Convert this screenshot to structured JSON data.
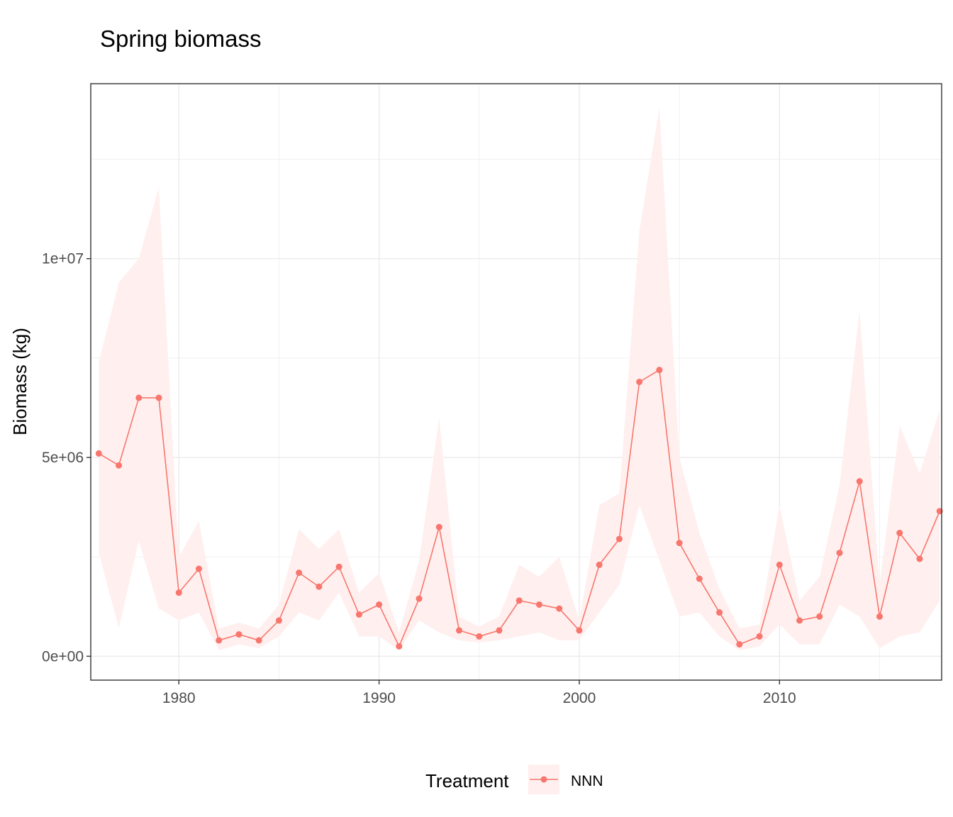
{
  "chart_data": {
    "type": "line",
    "title": "Spring biomass",
    "xlabel": "",
    "ylabel": "Biomass (kg)",
    "xlim": [
      1975.6,
      2018.1
    ],
    "ylim": [
      -600000,
      14400000
    ],
    "x_ticks": [
      1980,
      1990,
      2000,
      2010
    ],
    "x_tick_labels": [
      "1980",
      "1990",
      "2000",
      "2010"
    ],
    "y_ticks": [
      0,
      5000000,
      10000000
    ],
    "y_tick_labels": [
      "0e+00",
      "5e+06",
      "1e+07"
    ],
    "grid": true,
    "legend": {
      "title": "Treatment",
      "position": "bottom",
      "entries": [
        "NNN"
      ]
    },
    "colors": {
      "line": "#f8766d",
      "ribbon": "#fff0ef",
      "grid": "#ebebeb",
      "panel_border": "#333333"
    },
    "series": [
      {
        "name": "NNN",
        "x": [
          1976,
          1977,
          1978,
          1979,
          1980,
          1981,
          1982,
          1983,
          1984,
          1985,
          1986,
          1987,
          1988,
          1989,
          1990,
          1991,
          1992,
          1993,
          1994,
          1995,
          1996,
          1997,
          1998,
          1999,
          2000,
          2001,
          2002,
          2003,
          2004,
          2005,
          2006,
          2007,
          2008,
          2009,
          2010,
          2011,
          2012,
          2013,
          2014,
          2015,
          2016,
          2017,
          2018
        ],
        "y": [
          5100000,
          4800000,
          6500000,
          6500000,
          1600000,
          2200000,
          400000,
          550000,
          400000,
          900000,
          2100000,
          1750000,
          2250000,
          1050000,
          1300000,
          250000,
          1450000,
          3250000,
          650000,
          500000,
          650000,
          1400000,
          1300000,
          1200000,
          650000,
          2300000,
          2950000,
          6900000,
          7200000,
          2850000,
          1950000,
          1100000,
          300000,
          500000,
          2300000,
          900000,
          1000000,
          2600000,
          4400000,
          1000000,
          3100000,
          2450000,
          3650000
        ],
        "lower": [
          2600000,
          700000,
          2900000,
          1200000,
          900000,
          1100000,
          150000,
          300000,
          200000,
          500000,
          1100000,
          900000,
          1600000,
          500000,
          500000,
          150000,
          900000,
          600000,
          400000,
          350000,
          400000,
          500000,
          600000,
          400000,
          400000,
          1100000,
          1800000,
          3800000,
          2400000,
          1000000,
          1100000,
          500000,
          150000,
          250000,
          800000,
          300000,
          300000,
          1300000,
          1000000,
          200000,
          500000,
          600000,
          1400000
        ],
        "upper": [
          7400000,
          9400000,
          10000000,
          11800000,
          2500000,
          3400000,
          700000,
          850000,
          700000,
          1300000,
          3200000,
          2700000,
          3200000,
          1600000,
          2100000,
          600000,
          2400000,
          6000000,
          1000000,
          750000,
          1000000,
          2300000,
          2000000,
          2500000,
          900000,
          3800000,
          4100000,
          10700000,
          13800000,
          5000000,
          3100000,
          1700000,
          700000,
          800000,
          3800000,
          1400000,
          2000000,
          4300000,
          8700000,
          1800000,
          5800000,
          4600000,
          6200000
        ]
      }
    ]
  }
}
